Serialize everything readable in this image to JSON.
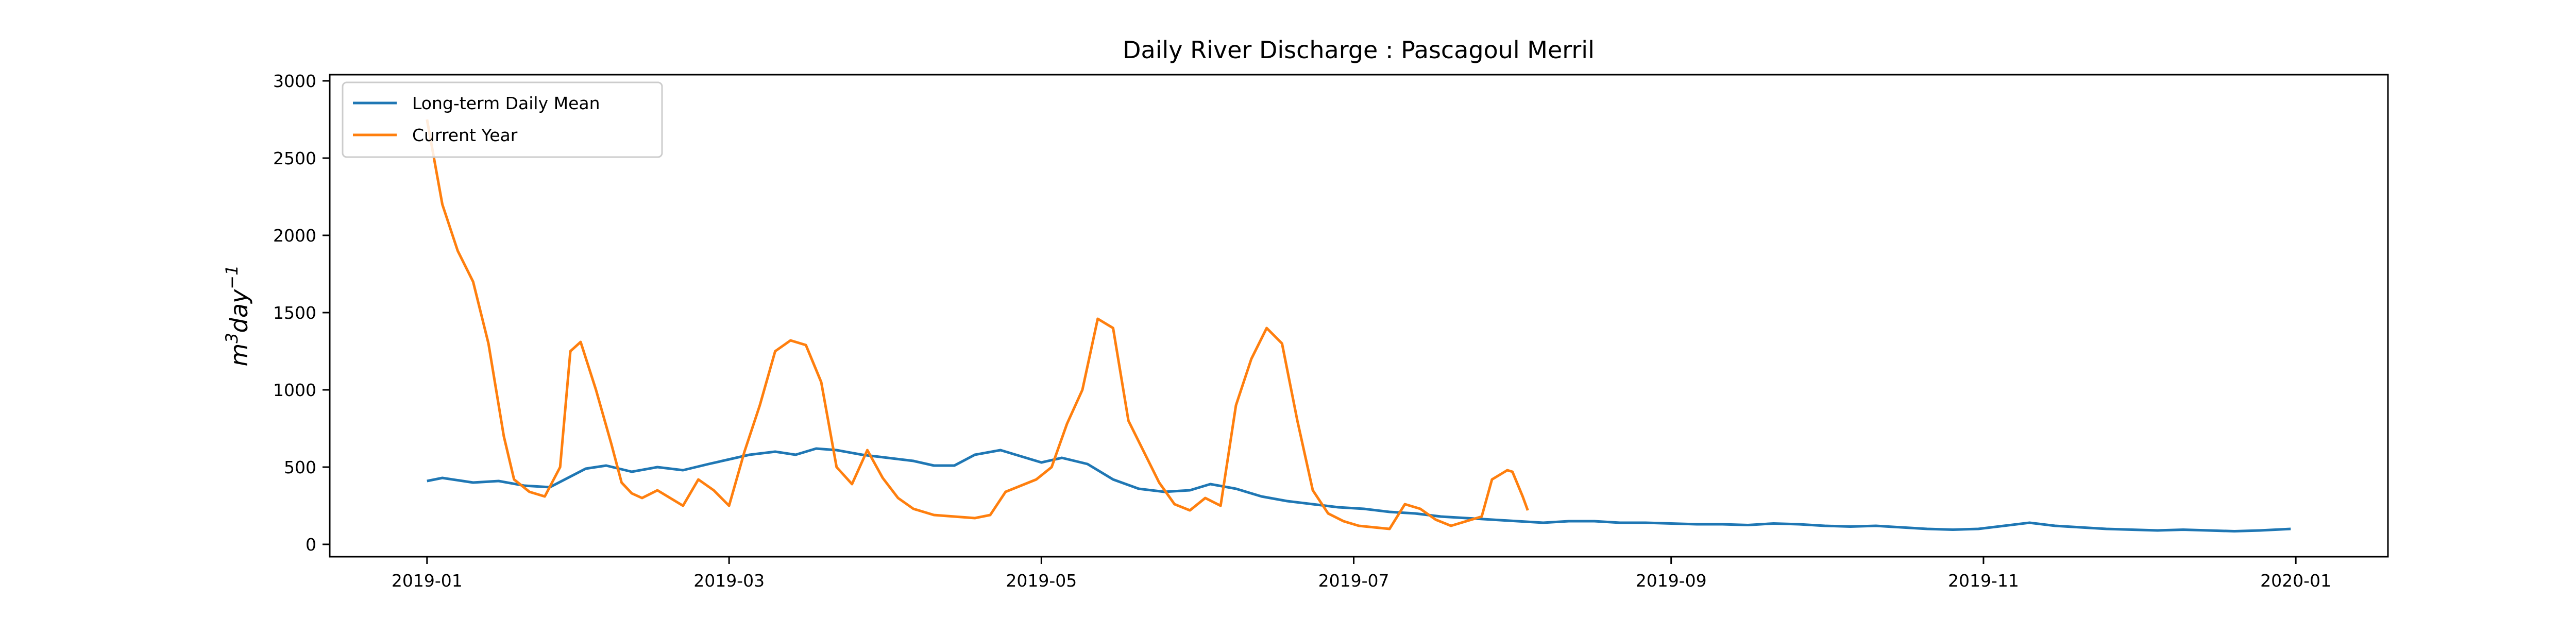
{
  "chart_data": {
    "type": "line",
    "title": "Daily River Discharge : Pascagoul Merril",
    "xlabel": "",
    "ylabel": "m^3 day^-1",
    "ylabel_parts": {
      "base1": "m",
      "sup1": "3",
      "base2": "day",
      "sup2": "−1"
    },
    "x_axis_type": "date",
    "xlim": [
      "2018-12-13",
      "2020-01-19"
    ],
    "ylim": [
      -80,
      3040
    ],
    "x_ticks": [
      "2019-01",
      "2019-03",
      "2019-05",
      "2019-07",
      "2019-09",
      "2019-11",
      "2020-01"
    ],
    "y_ticks": [
      0,
      500,
      1000,
      1500,
      2000,
      2500,
      3000
    ],
    "grid": false,
    "legend": {
      "placement": "upper-left"
    },
    "series": [
      {
        "name": "Long-term Daily Mean",
        "color": "#1f77b4",
        "points": [
          [
            "2019-01-01",
            410
          ],
          [
            "2019-01-04",
            430
          ],
          [
            "2019-01-10",
            400
          ],
          [
            "2019-01-15",
            410
          ],
          [
            "2019-01-20",
            380
          ],
          [
            "2019-01-25",
            370
          ],
          [
            "2019-02-01",
            490
          ],
          [
            "2019-02-05",
            510
          ],
          [
            "2019-02-10",
            470
          ],
          [
            "2019-02-15",
            500
          ],
          [
            "2019-02-20",
            480
          ],
          [
            "2019-02-25",
            520
          ],
          [
            "2019-03-01",
            550
          ],
          [
            "2019-03-05",
            580
          ],
          [
            "2019-03-10",
            600
          ],
          [
            "2019-03-14",
            580
          ],
          [
            "2019-03-18",
            620
          ],
          [
            "2019-03-22",
            610
          ],
          [
            "2019-03-27",
            580
          ],
          [
            "2019-04-01",
            560
          ],
          [
            "2019-04-06",
            540
          ],
          [
            "2019-04-10",
            510
          ],
          [
            "2019-04-14",
            510
          ],
          [
            "2019-04-18",
            580
          ],
          [
            "2019-04-23",
            610
          ],
          [
            "2019-04-27",
            570
          ],
          [
            "2019-05-01",
            530
          ],
          [
            "2019-05-05",
            560
          ],
          [
            "2019-05-10",
            520
          ],
          [
            "2019-05-15",
            420
          ],
          [
            "2019-05-20",
            360
          ],
          [
            "2019-05-25",
            340
          ],
          [
            "2019-05-30",
            350
          ],
          [
            "2019-06-03",
            390
          ],
          [
            "2019-06-08",
            360
          ],
          [
            "2019-06-13",
            310
          ],
          [
            "2019-06-18",
            280
          ],
          [
            "2019-06-23",
            260
          ],
          [
            "2019-06-28",
            240
          ],
          [
            "2019-07-03",
            230
          ],
          [
            "2019-07-08",
            210
          ],
          [
            "2019-07-13",
            200
          ],
          [
            "2019-07-18",
            180
          ],
          [
            "2019-07-23",
            170
          ],
          [
            "2019-07-28",
            160
          ],
          [
            "2019-08-02",
            150
          ],
          [
            "2019-08-07",
            140
          ],
          [
            "2019-08-12",
            150
          ],
          [
            "2019-08-17",
            150
          ],
          [
            "2019-08-22",
            140
          ],
          [
            "2019-08-27",
            140
          ],
          [
            "2019-09-01",
            135
          ],
          [
            "2019-09-06",
            130
          ],
          [
            "2019-09-11",
            130
          ],
          [
            "2019-09-16",
            125
          ],
          [
            "2019-09-21",
            135
          ],
          [
            "2019-09-26",
            130
          ],
          [
            "2019-10-01",
            120
          ],
          [
            "2019-10-06",
            115
          ],
          [
            "2019-10-11",
            120
          ],
          [
            "2019-10-16",
            110
          ],
          [
            "2019-10-21",
            100
          ],
          [
            "2019-10-26",
            95
          ],
          [
            "2019-10-31",
            100
          ],
          [
            "2019-11-05",
            120
          ],
          [
            "2019-11-10",
            140
          ],
          [
            "2019-11-15",
            120
          ],
          [
            "2019-11-20",
            110
          ],
          [
            "2019-11-25",
            100
          ],
          [
            "2019-11-30",
            95
          ],
          [
            "2019-12-05",
            90
          ],
          [
            "2019-12-10",
            95
          ],
          [
            "2019-12-15",
            90
          ],
          [
            "2019-12-20",
            85
          ],
          [
            "2019-12-25",
            90
          ],
          [
            "2019-12-31",
            100
          ]
        ]
      },
      {
        "name": "Current Year",
        "color": "#ff7f0e",
        "points": [
          [
            "2019-01-01",
            2750
          ],
          [
            "2019-01-04",
            2200
          ],
          [
            "2019-01-07",
            1900
          ],
          [
            "2019-01-10",
            1700
          ],
          [
            "2019-01-13",
            1300
          ],
          [
            "2019-01-16",
            700
          ],
          [
            "2019-01-18",
            420
          ],
          [
            "2019-01-21",
            340
          ],
          [
            "2019-01-24",
            310
          ],
          [
            "2019-01-27",
            500
          ],
          [
            "2019-01-29",
            1250
          ],
          [
            "2019-01-31",
            1310
          ],
          [
            "2019-02-03",
            1000
          ],
          [
            "2019-02-06",
            650
          ],
          [
            "2019-02-08",
            400
          ],
          [
            "2019-02-10",
            330
          ],
          [
            "2019-02-12",
            300
          ],
          [
            "2019-02-15",
            350
          ],
          [
            "2019-02-18",
            290
          ],
          [
            "2019-02-20",
            250
          ],
          [
            "2019-02-23",
            420
          ],
          [
            "2019-02-26",
            350
          ],
          [
            "2019-03-01",
            250
          ],
          [
            "2019-03-04",
            600
          ],
          [
            "2019-03-07",
            900
          ],
          [
            "2019-03-10",
            1250
          ],
          [
            "2019-03-13",
            1320
          ],
          [
            "2019-03-16",
            1290
          ],
          [
            "2019-03-19",
            1050
          ],
          [
            "2019-03-22",
            500
          ],
          [
            "2019-03-25",
            390
          ],
          [
            "2019-03-28",
            610
          ],
          [
            "2019-03-31",
            430
          ],
          [
            "2019-04-03",
            300
          ],
          [
            "2019-04-06",
            230
          ],
          [
            "2019-04-10",
            190
          ],
          [
            "2019-04-14",
            180
          ],
          [
            "2019-04-18",
            170
          ],
          [
            "2019-04-21",
            190
          ],
          [
            "2019-04-24",
            340
          ],
          [
            "2019-04-27",
            380
          ],
          [
            "2019-04-30",
            420
          ],
          [
            "2019-05-03",
            500
          ],
          [
            "2019-05-06",
            780
          ],
          [
            "2019-05-09",
            1000
          ],
          [
            "2019-05-12",
            1460
          ],
          [
            "2019-05-15",
            1400
          ],
          [
            "2019-05-18",
            800
          ],
          [
            "2019-05-21",
            600
          ],
          [
            "2019-05-24",
            400
          ],
          [
            "2019-05-27",
            260
          ],
          [
            "2019-05-30",
            220
          ],
          [
            "2019-06-02",
            300
          ],
          [
            "2019-06-05",
            250
          ],
          [
            "2019-06-08",
            900
          ],
          [
            "2019-06-11",
            1200
          ],
          [
            "2019-06-14",
            1400
          ],
          [
            "2019-06-17",
            1300
          ],
          [
            "2019-06-20",
            800
          ],
          [
            "2019-06-23",
            350
          ],
          [
            "2019-06-26",
            200
          ],
          [
            "2019-06-29",
            150
          ],
          [
            "2019-07-02",
            120
          ],
          [
            "2019-07-05",
            110
          ],
          [
            "2019-07-08",
            100
          ],
          [
            "2019-07-11",
            260
          ],
          [
            "2019-07-14",
            230
          ],
          [
            "2019-07-17",
            160
          ],
          [
            "2019-07-20",
            120
          ],
          [
            "2019-07-23",
            150
          ],
          [
            "2019-07-26",
            180
          ],
          [
            "2019-07-28",
            420
          ],
          [
            "2019-07-31",
            480
          ],
          [
            "2019-08-01",
            470
          ],
          [
            "2019-08-03",
            310
          ],
          [
            "2019-08-04",
            220
          ]
        ]
      }
    ]
  }
}
